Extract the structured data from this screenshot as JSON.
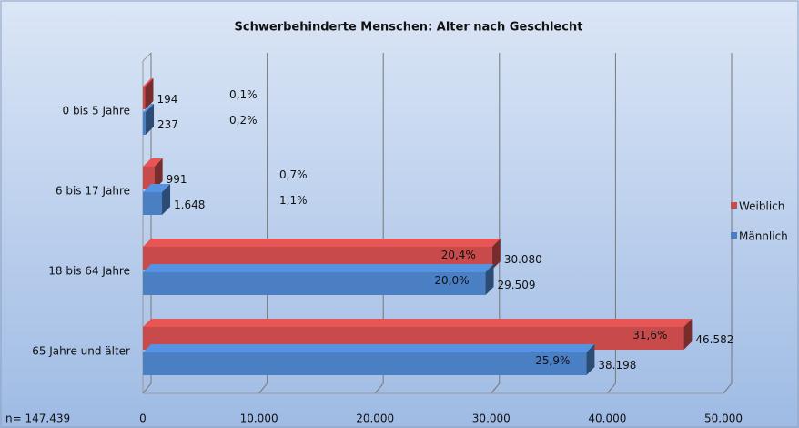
{
  "chart_data": {
    "type": "bar3d_horizontal",
    "title": "Schwerbehinderte Menschen: Alter nach  Geschlecht",
    "categories": [
      "0 bis 5 Jahre",
      "6 bis 17 Jahre",
      "18 bis 64 Jahre",
      "65 Jahre und älter"
    ],
    "series": [
      {
        "name": "Weiblich",
        "color": "#c94a4a",
        "values": [
          194,
          991,
          30080,
          46582
        ],
        "value_labels": [
          "194",
          "991",
          "30.080",
          "46.582"
        ],
        "percent_labels": [
          "0,1%",
          "0,7%",
          "20,4%",
          "31,6%"
        ]
      },
      {
        "name": "Männlich",
        "color": "#4a7fc4",
        "values": [
          237,
          1648,
          29509,
          38198
        ],
        "value_labels": [
          "237",
          "1.648",
          "29.509",
          "38.198"
        ],
        "percent_labels": [
          "0,2%",
          "1,1%",
          "20,0%",
          "25,9%"
        ]
      }
    ],
    "xlim": [
      0,
      50000
    ],
    "xticks": [
      0,
      {
        "value": 10000,
        "label": "10.000"
      },
      {
        "value": 20000,
        "label": "20.000"
      },
      {
        "value": 30000,
        "label": "30.000"
      },
      {
        "value": 40000,
        "label": "40.000"
      },
      {
        "value": 50000,
        "label": "50.000"
      }
    ],
    "grid": true,
    "legend": "right",
    "annotation": "n= 147.439"
  }
}
